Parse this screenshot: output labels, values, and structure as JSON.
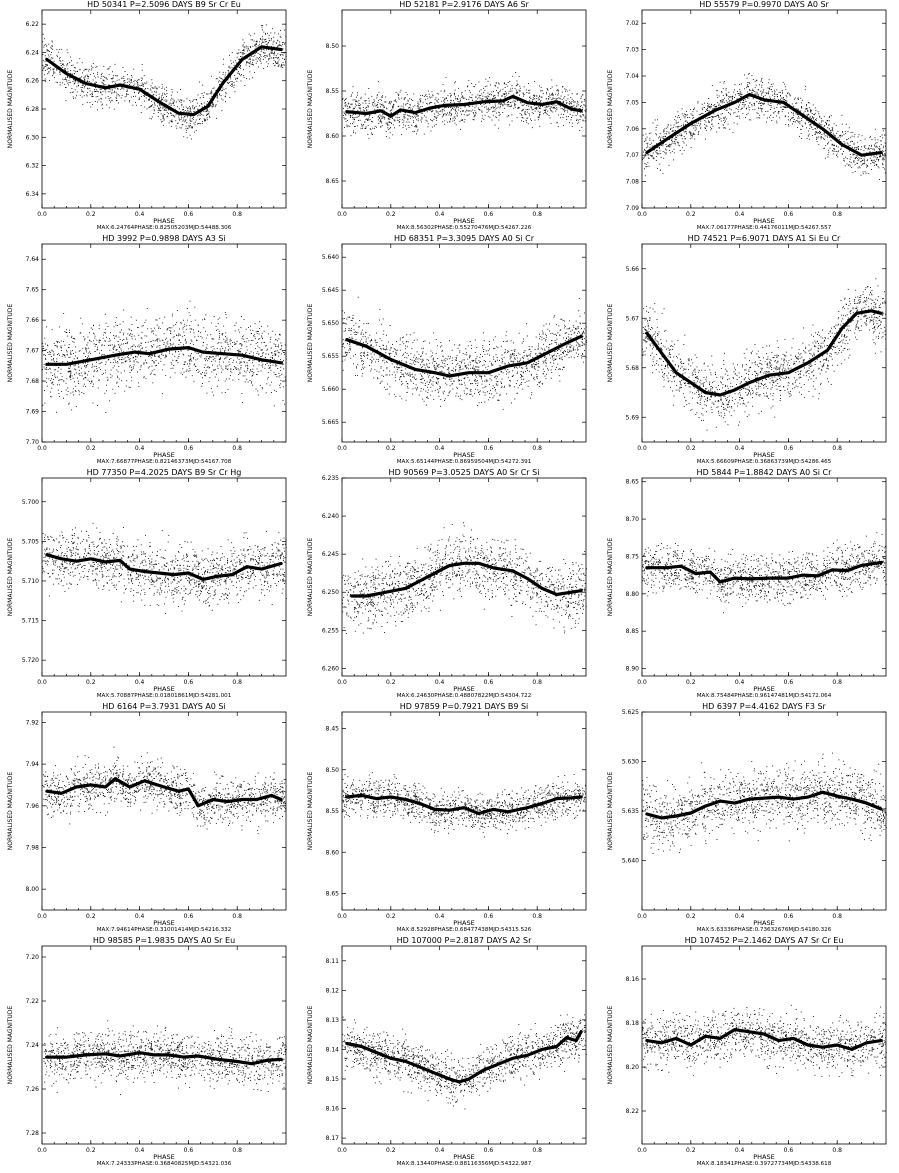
{
  "chart_data": [
    {
      "type": "scatter",
      "title": "HD 50341   P=2.5096 DAYS   B9 Sr Cr Eu",
      "footer": "MAX:6.24764PHASE:0.82505203MJD:54488.306",
      "xlabel": "PHASE",
      "ylabel": "NORMALISED MAGNITUDE",
      "xlim": [
        0,
        1
      ],
      "ylim": [
        6.35,
        6.21
      ],
      "scatter": 0.014,
      "xticks": [
        0.0,
        0.2,
        0.4,
        0.6,
        0.8
      ],
      "xtick_labels": [
        "0.0",
        "0.2",
        "0.4",
        "0.6",
        "0.8"
      ],
      "yticks": [
        6.22,
        6.24,
        6.26,
        6.28,
        6.3,
        6.32,
        6.34
      ],
      "ytick_labels": [
        "6.22",
        "6.24",
        "6.26",
        "6.28",
        "6.30",
        "6.32",
        "6.34"
      ],
      "curve_x": [
        0.02,
        0.1,
        0.18,
        0.26,
        0.32,
        0.4,
        0.48,
        0.56,
        0.62,
        0.68,
        0.74,
        0.82,
        0.9,
        0.98
      ],
      "curve_y": [
        6.245,
        6.255,
        6.262,
        6.265,
        6.263,
        6.266,
        6.275,
        6.283,
        6.284,
        6.278,
        6.262,
        6.245,
        6.236,
        6.238
      ]
    },
    {
      "type": "scatter",
      "title": "HD 52181   P=2.9176 DAYS   A6 Sr",
      "footer": "MAX:8.56302PHASE:0.55270476MJD:54267.226",
      "xlabel": "PHASE",
      "ylabel": "NORMALISED MAGNITUDE",
      "xlim": [
        0,
        1
      ],
      "ylim": [
        8.68,
        8.46
      ],
      "scatter": 0.022,
      "xticks": [
        0.0,
        0.2,
        0.4,
        0.6,
        0.8
      ],
      "xtick_labels": [
        "0.0",
        "0.2",
        "0.4",
        "0.6",
        "0.8"
      ],
      "yticks": [
        8.5,
        8.55,
        8.6,
        8.65
      ],
      "ytick_labels": [
        "8.50",
        "8.55",
        "8.60",
        "8.65"
      ],
      "curve_x": [
        0.02,
        0.1,
        0.16,
        0.2,
        0.24,
        0.3,
        0.36,
        0.42,
        0.5,
        0.58,
        0.66,
        0.7,
        0.76,
        0.82,
        0.88,
        0.94,
        0.98
      ],
      "curve_y": [
        8.573,
        8.575,
        8.572,
        8.578,
        8.571,
        8.574,
        8.569,
        8.566,
        8.565,
        8.562,
        8.561,
        8.556,
        8.563,
        8.565,
        8.562,
        8.57,
        8.572
      ]
    },
    {
      "type": "scatter",
      "title": "HD 55579   P=0.9970 DAYS   A0 Sr",
      "footer": "MAX:7.06177PHASE:0.44176011MJD:54267.557",
      "xlabel": "PHASE",
      "ylabel": "NORMALISED MAGNITUDE",
      "xlim": [
        0,
        1
      ],
      "ylim": [
        7.09,
        7.015
      ],
      "scatter": 0.008,
      "xticks": [
        0.0,
        0.2,
        0.4,
        0.6,
        0.8
      ],
      "xtick_labels": [
        "0.0",
        "0.2",
        "0.4",
        "0.6",
        "0.8"
      ],
      "yticks": [
        7.02,
        7.03,
        7.04,
        7.05,
        7.06,
        7.07,
        7.08,
        7.09
      ],
      "ytick_labels": [
        "7.02",
        "7.03",
        "7.04",
        "7.05",
        "7.06",
        "7.07",
        "7.08",
        "7.09"
      ],
      "curve_x": [
        0.02,
        0.1,
        0.2,
        0.3,
        0.38,
        0.44,
        0.5,
        0.58,
        0.66,
        0.74,
        0.82,
        0.9,
        0.98
      ],
      "curve_y": [
        7.069,
        7.064,
        7.058,
        7.053,
        7.05,
        7.047,
        7.049,
        7.05,
        7.055,
        7.06,
        7.066,
        7.07,
        7.069
      ]
    },
    {
      "type": "scatter",
      "title": "HD 3992   P=0.9898 DAYS   A3 Si",
      "footer": "MAX:7.66877PHASE:0.82146373MJD:54167.708",
      "xlabel": "PHASE",
      "ylabel": "NORMALISED MAGNITUDE",
      "xlim": [
        0,
        1
      ],
      "ylim": [
        7.7,
        7.635
      ],
      "scatter": 0.012,
      "xticks": [
        0.0,
        0.2,
        0.4,
        0.6,
        0.8
      ],
      "xtick_labels": [
        "0.0",
        "0.2",
        "0.4",
        "0.6",
        "0.8"
      ],
      "yticks": [
        7.64,
        7.65,
        7.66,
        7.67,
        7.68,
        7.69,
        7.7
      ],
      "ytick_labels": [
        "7.64",
        "7.65",
        "7.66",
        "7.67",
        "7.68",
        "7.69",
        "7.70"
      ],
      "curve_x": [
        0.02,
        0.1,
        0.2,
        0.3,
        0.38,
        0.44,
        0.52,
        0.6,
        0.66,
        0.74,
        0.82,
        0.9,
        0.98
      ],
      "curve_y": [
        7.6745,
        7.6745,
        7.673,
        7.6715,
        7.6705,
        7.671,
        7.6695,
        7.669,
        7.6705,
        7.671,
        7.6715,
        7.673,
        7.674
      ]
    },
    {
      "type": "scatter",
      "title": "HD 68351   P=3.3095 DAYS   A0 Si Cr",
      "footer": "MAX:5.65144PHASE:0.86959504MJD:54272.391",
      "xlabel": "PHASE",
      "ylabel": "NORMALISED MAGNITUDE",
      "xlim": [
        0,
        1
      ],
      "ylim": [
        5.668,
        5.638
      ],
      "scatter": 0.0045,
      "xticks": [
        0.0,
        0.2,
        0.4,
        0.6,
        0.8
      ],
      "xtick_labels": [
        "0.0",
        "0.2",
        "0.4",
        "0.6",
        "0.8"
      ],
      "yticks": [
        5.64,
        5.645,
        5.65,
        5.655,
        5.66,
        5.665
      ],
      "ytick_labels": [
        "5.640",
        "5.645",
        "5.650",
        "5.655",
        "5.660",
        "5.665"
      ],
      "curve_x": [
        0.02,
        0.1,
        0.2,
        0.3,
        0.38,
        0.44,
        0.52,
        0.6,
        0.68,
        0.76,
        0.84,
        0.92,
        0.98
      ],
      "curve_y": [
        5.6525,
        5.6535,
        5.6555,
        5.657,
        5.6575,
        5.658,
        5.6575,
        5.6575,
        5.6565,
        5.656,
        5.6545,
        5.653,
        5.652
      ]
    },
    {
      "type": "scatter",
      "title": "HD 74521   P=6.9071 DAYS   A1 Si Eu Cr",
      "footer": "MAX:5.66609PHASE:0.36863739MJD:54286.465",
      "xlabel": "PHASE",
      "ylabel": "NORMALISED MAGNITUDE",
      "xlim": [
        0,
        1
      ],
      "ylim": [
        5.695,
        5.655
      ],
      "scatter": 0.006,
      "xticks": [
        0.0,
        0.2,
        0.4,
        0.6,
        0.8
      ],
      "xtick_labels": [
        "0.0",
        "0.2",
        "0.4",
        "0.6",
        "0.8"
      ],
      "yticks": [
        5.66,
        5.67,
        5.68,
        5.69
      ],
      "ytick_labels": [
        "5.66",
        "5.67",
        "5.68",
        "5.69"
      ],
      "curve_x": [
        0.02,
        0.08,
        0.14,
        0.2,
        0.26,
        0.32,
        0.38,
        0.44,
        0.52,
        0.6,
        0.68,
        0.76,
        0.82,
        0.88,
        0.94,
        0.98
      ],
      "curve_y": [
        5.673,
        5.677,
        5.681,
        5.683,
        5.685,
        5.6855,
        5.6845,
        5.683,
        5.6815,
        5.681,
        5.679,
        5.6765,
        5.672,
        5.669,
        5.6685,
        5.669
      ]
    },
    {
      "type": "scatter",
      "title": "HD 77350   P=4.2025 DAYS   B9 Sr Cr Hg",
      "footer": "MAX:5.70887PHASE:0.01801861MJD:54281.001",
      "xlabel": "PHASE",
      "ylabel": "NORMALISED MAGNITUDE",
      "xlim": [
        0,
        1
      ],
      "ylim": [
        5.722,
        5.697
      ],
      "scatter": 0.0035,
      "xticks": [
        0.0,
        0.2,
        0.4,
        0.6,
        0.8
      ],
      "xtick_labels": [
        "0.0",
        "0.2",
        "0.4",
        "0.6",
        "0.8"
      ],
      "yticks": [
        5.7,
        5.705,
        5.71,
        5.715,
        5.72
      ],
      "ytick_labels": [
        "5.700",
        "5.705",
        "5.710",
        "5.715",
        "5.720"
      ],
      "curve_x": [
        0.02,
        0.08,
        0.14,
        0.2,
        0.26,
        0.32,
        0.36,
        0.42,
        0.48,
        0.54,
        0.6,
        0.66,
        0.72,
        0.78,
        0.84,
        0.9,
        0.98
      ],
      "curve_y": [
        5.7067,
        5.7072,
        5.7075,
        5.7072,
        5.7076,
        5.7074,
        5.7085,
        5.7088,
        5.709,
        5.7092,
        5.709,
        5.7098,
        5.7094,
        5.7092,
        5.7082,
        5.7085,
        5.7078
      ]
    },
    {
      "type": "scatter",
      "title": "HD 90569   P=3.0525 DAYS   A0 Sr Cr Si",
      "footer": "MAX:6.24630PHASE:0.48807822MJD:54304.722",
      "xlabel": "PHASE",
      "ylabel": "NORMALISED MAGNITUDE",
      "xlim": [
        0,
        1
      ],
      "ylim": [
        6.261,
        6.235
      ],
      "scatter": 0.004,
      "xticks": [
        0.0,
        0.2,
        0.4,
        0.6,
        0.8
      ],
      "xtick_labels": [
        "0.0",
        "0.2",
        "0.4",
        "0.6",
        "0.8"
      ],
      "yticks": [
        6.235,
        6.24,
        6.245,
        6.25,
        6.255,
        6.26
      ],
      "ytick_labels": [
        "6.235",
        "6.240",
        "6.245",
        "6.250",
        "6.255",
        "6.260"
      ],
      "curve_x": [
        0.04,
        0.1,
        0.18,
        0.26,
        0.32,
        0.38,
        0.44,
        0.5,
        0.56,
        0.62,
        0.7,
        0.76,
        0.82,
        0.88,
        0.94,
        0.98
      ],
      "curve_y": [
        6.2505,
        6.2505,
        6.25,
        6.2495,
        6.2485,
        6.2475,
        6.2465,
        6.2462,
        6.2462,
        6.2468,
        6.2472,
        6.2482,
        6.2495,
        6.2503,
        6.25,
        6.2498
      ]
    },
    {
      "type": "scatter",
      "title": "HD 5844   P=1.8842 DAYS   A0 Si Cr",
      "footer": "MAX:8.75484PHASE:0.96147481MJD:54172.064",
      "xlabel": "PHASE",
      "ylabel": "NORMALISED MAGNITUDE",
      "xlim": [
        0,
        1
      ],
      "ylim": [
        8.91,
        8.645
      ],
      "scatter": 0.03,
      "xticks": [
        0.0,
        0.2,
        0.4,
        0.6,
        0.8
      ],
      "xtick_labels": [
        "0.0",
        "0.2",
        "0.4",
        "0.6",
        "0.8"
      ],
      "yticks": [
        8.65,
        8.7,
        8.75,
        8.8,
        8.85,
        8.9
      ],
      "ytick_labels": [
        "8.65",
        "8.70",
        "8.75",
        "8.80",
        "8.85",
        "8.90"
      ],
      "curve_x": [
        0.02,
        0.1,
        0.16,
        0.22,
        0.28,
        0.32,
        0.38,
        0.44,
        0.52,
        0.6,
        0.66,
        0.72,
        0.78,
        0.84,
        0.9,
        0.98
      ],
      "curve_y": [
        8.765,
        8.765,
        8.763,
        8.773,
        8.771,
        8.784,
        8.779,
        8.78,
        8.779,
        8.779,
        8.775,
        8.776,
        8.768,
        8.769,
        8.762,
        8.758
      ]
    },
    {
      "type": "scatter",
      "title": "HD 6164   P=3.7931 DAYS   A0 Si",
      "footer": "MAX:7.94614PHASE:0.31001414MJD:54216.332",
      "xlabel": "PHASE",
      "ylabel": "NORMALISED MAGNITUDE",
      "xlim": [
        0,
        1
      ],
      "ylim": [
        8.01,
        7.915
      ],
      "scatter": 0.011,
      "xticks": [
        0.0,
        0.2,
        0.4,
        0.6,
        0.8
      ],
      "xtick_labels": [
        "0.0",
        "0.2",
        "0.4",
        "0.6",
        "0.8"
      ],
      "yticks": [
        7.92,
        7.94,
        7.96,
        7.98,
        8.0
      ],
      "ytick_labels": [
        "7.92",
        "7.94",
        "7.96",
        "7.98",
        "8.00"
      ],
      "curve_x": [
        0.02,
        0.08,
        0.14,
        0.2,
        0.26,
        0.3,
        0.36,
        0.42,
        0.5,
        0.56,
        0.6,
        0.64,
        0.7,
        0.76,
        0.82,
        0.88,
        0.94,
        0.98
      ],
      "curve_y": [
        7.953,
        7.954,
        7.951,
        7.95,
        7.951,
        7.947,
        7.951,
        7.948,
        7.951,
        7.953,
        7.952,
        7.96,
        7.957,
        7.958,
        7.957,
        7.957,
        7.955,
        7.957
      ]
    },
    {
      "type": "scatter",
      "title": "HD 97859   P=0.7921 DAYS   B9 Si",
      "footer": "MAX:8.52928PHASE:0.68477438MJD:54315.526",
      "xlabel": "PHASE",
      "ylabel": "NORMALISED MAGNITUDE",
      "xlim": [
        0,
        1
      ],
      "ylim": [
        8.67,
        8.43
      ],
      "scatter": 0.022,
      "xticks": [
        0.0,
        0.2,
        0.4,
        0.6,
        0.8
      ],
      "xtick_labels": [
        "0.0",
        "0.2",
        "0.4",
        "0.6",
        "0.8"
      ],
      "yticks": [
        8.45,
        8.5,
        8.55,
        8.6,
        8.65
      ],
      "ytick_labels": [
        "8.45",
        "8.50",
        "8.55",
        "8.60",
        "8.65"
      ],
      "curve_x": [
        0.02,
        0.08,
        0.14,
        0.2,
        0.26,
        0.32,
        0.38,
        0.44,
        0.5,
        0.56,
        0.62,
        0.68,
        0.76,
        0.82,
        0.88,
        0.94,
        0.98
      ],
      "curve_y": [
        8.533,
        8.531,
        8.535,
        8.533,
        8.536,
        8.541,
        8.548,
        8.549,
        8.546,
        8.553,
        8.548,
        8.551,
        8.546,
        8.541,
        8.535,
        8.534,
        8.533
      ]
    },
    {
      "type": "scatter",
      "title": "HD 6397   P=4.4162 DAYS   F3 Sr",
      "footer": "MAX:5.63336PHASE:0.73632676MJD:54180.326",
      "xlabel": "PHASE",
      "ylabel": "NORMALISED MAGNITUDE",
      "xlim": [
        0,
        1
      ],
      "ylim": [
        5.645,
        5.625
      ],
      "scatter": 0.003,
      "xticks": [
        0.0,
        0.2,
        0.4,
        0.6,
        0.8
      ],
      "xtick_labels": [
        "0.0",
        "0.2",
        "0.4",
        "0.6",
        "0.8"
      ],
      "yticks": [
        5.625,
        5.63,
        5.635,
        5.64
      ],
      "ytick_labels": [
        "5.625",
        "5.630",
        "5.635",
        "5.640"
      ],
      "curve_x": [
        0.02,
        0.08,
        0.14,
        0.2,
        0.26,
        0.32,
        0.38,
        0.44,
        0.5,
        0.56,
        0.62,
        0.68,
        0.74,
        0.8,
        0.86,
        0.92,
        0.98
      ],
      "curve_y": [
        5.6353,
        5.6357,
        5.6355,
        5.6352,
        5.6345,
        5.634,
        5.6342,
        5.6338,
        5.6337,
        5.6336,
        5.6338,
        5.6336,
        5.6331,
        5.6335,
        5.6338,
        5.6342,
        5.6348
      ]
    },
    {
      "type": "scatter",
      "title": "HD 98585   P=1.9835 DAYS   A0 Sr Eu",
      "footer": "MAX:7.24333PHASE:0.36840825MJD:54321.036",
      "xlabel": "PHASE",
      "ylabel": "NORMALISED MAGNITUDE",
      "xlim": [
        0,
        1
      ],
      "ylim": [
        7.285,
        7.195
      ],
      "scatter": 0.011,
      "xticks": [
        0.0,
        0.2,
        0.4,
        0.6,
        0.8
      ],
      "xtick_labels": [
        "0.0",
        "0.2",
        "0.4",
        "0.6",
        "0.8"
      ],
      "yticks": [
        7.2,
        7.22,
        7.24,
        7.26,
        7.28
      ],
      "ytick_labels": [
        "7.20",
        "7.22",
        "7.24",
        "7.26",
        "7.28"
      ],
      "curve_x": [
        0.02,
        0.1,
        0.18,
        0.26,
        0.32,
        0.4,
        0.46,
        0.52,
        0.58,
        0.64,
        0.72,
        0.8,
        0.86,
        0.92,
        0.98
      ],
      "curve_y": [
        7.2455,
        7.2455,
        7.2445,
        7.244,
        7.245,
        7.2435,
        7.2445,
        7.2445,
        7.2455,
        7.245,
        7.2465,
        7.2475,
        7.2485,
        7.247,
        7.2465
      ]
    },
    {
      "type": "scatter",
      "title": "HD 107000   P=2.8187 DAYS   A2 Sr",
      "footer": "MAX:8.13440PHASE:0.88116356MJD:54322.987",
      "xlabel": "PHASE",
      "ylabel": "NORMALISED MAGNITUDE",
      "xlim": [
        0,
        1
      ],
      "ylim": [
        8.172,
        8.105
      ],
      "scatter": 0.0075,
      "xticks": [
        0.0,
        0.2,
        0.4,
        0.6,
        0.8
      ],
      "xtick_labels": [
        "0.0",
        "0.2",
        "0.4",
        "0.6",
        "0.8"
      ],
      "yticks": [
        8.11,
        8.12,
        8.13,
        8.14,
        8.15,
        8.16,
        8.17
      ],
      "ytick_labels": [
        "8.11",
        "8.12",
        "8.13",
        "8.14",
        "8.15",
        "8.16",
        "8.17"
      ],
      "curve_x": [
        0.02,
        0.08,
        0.14,
        0.2,
        0.26,
        0.32,
        0.38,
        0.44,
        0.48,
        0.52,
        0.58,
        0.64,
        0.7,
        0.76,
        0.82,
        0.88,
        0.92,
        0.96,
        0.98
      ],
      "curve_y": [
        8.138,
        8.139,
        8.141,
        8.143,
        8.144,
        8.146,
        8.148,
        8.15,
        8.151,
        8.15,
        8.147,
        8.145,
        8.143,
        8.142,
        8.14,
        8.139,
        8.136,
        8.137,
        8.134
      ]
    },
    {
      "type": "scatter",
      "title": "HD 107452   P=2.1462 DAYS   A7 Sr Cr Eu",
      "footer": "MAX:8.18341PHASE:0.39727734MJD:54338.618",
      "xlabel": "PHASE",
      "ylabel": "NORMALISED MAGNITUDE",
      "xlim": [
        0,
        1
      ],
      "ylim": [
        8.235,
        8.145
      ],
      "scatter": 0.011,
      "xticks": [
        0.0,
        0.2,
        0.4,
        0.6,
        0.8
      ],
      "xtick_labels": [
        "0.0",
        "0.2",
        "0.4",
        "0.6",
        "0.8"
      ],
      "yticks": [
        8.16,
        8.18,
        8.2,
        8.22
      ],
      "ytick_labels": [
        "8.16",
        "8.18",
        "8.20",
        "8.22"
      ],
      "curve_x": [
        0.02,
        0.08,
        0.14,
        0.2,
        0.26,
        0.32,
        0.38,
        0.44,
        0.5,
        0.56,
        0.62,
        0.68,
        0.74,
        0.8,
        0.86,
        0.92,
        0.98
      ],
      "curve_y": [
        8.188,
        8.189,
        8.187,
        8.19,
        8.186,
        8.187,
        8.183,
        8.184,
        8.185,
        8.188,
        8.187,
        8.19,
        8.191,
        8.19,
        8.192,
        8.189,
        8.188
      ]
    }
  ]
}
